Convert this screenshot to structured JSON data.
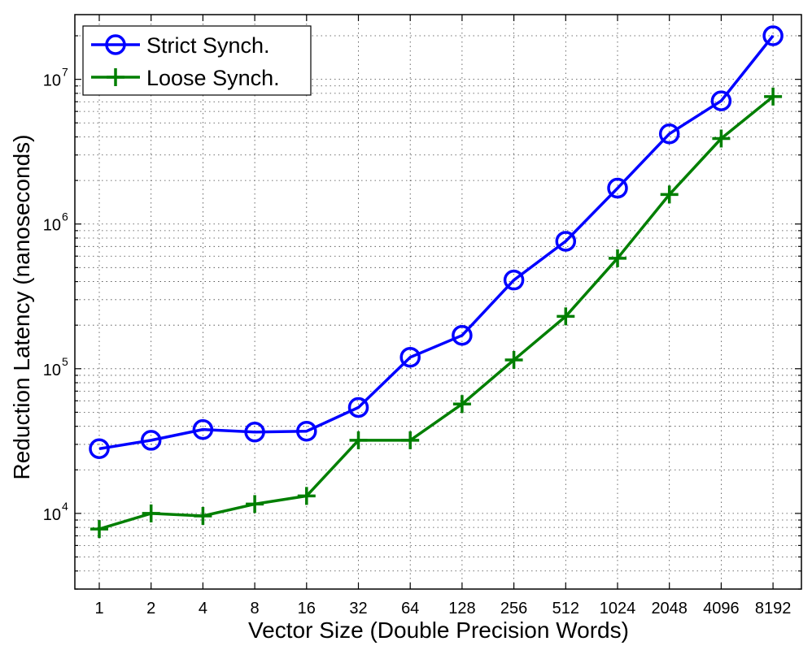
{
  "chart_data": {
    "type": "line",
    "xlabel": "Vector Size (Double Precision Words)",
    "ylabel": "Reduction Latency (nanoseconds)",
    "y_scale": "log",
    "ylim": [
      3000,
      28000000
    ],
    "grid": true,
    "legend_position": "top-left",
    "categories": [
      "1",
      "2",
      "4",
      "8",
      "16",
      "32",
      "64",
      "128",
      "256",
      "512",
      "1024",
      "2048",
      "4096",
      "8192"
    ],
    "y_ticks": [
      {
        "base": "10",
        "exp": "4",
        "value": 10000
      },
      {
        "base": "10",
        "exp": "5",
        "value": 100000
      },
      {
        "base": "10",
        "exp": "6",
        "value": 1000000
      },
      {
        "base": "10",
        "exp": "7",
        "value": 10000000
      }
    ],
    "series": [
      {
        "name": "Strict Synch.",
        "color": "#0000ff",
        "marker": "circle",
        "values": [
          28000,
          32000,
          38000,
          36500,
          37000,
          54000,
          120000,
          170000,
          410000,
          760000,
          1770000,
          4200000,
          7100000,
          20000000
        ]
      },
      {
        "name": "Loose Synch.",
        "color": "#007f00",
        "marker": "plus",
        "values": [
          7800,
          10000,
          9600,
          11600,
          13200,
          32000,
          32000,
          57000,
          115000,
          230000,
          580000,
          1600000,
          3900000,
          7600000
        ]
      }
    ]
  }
}
